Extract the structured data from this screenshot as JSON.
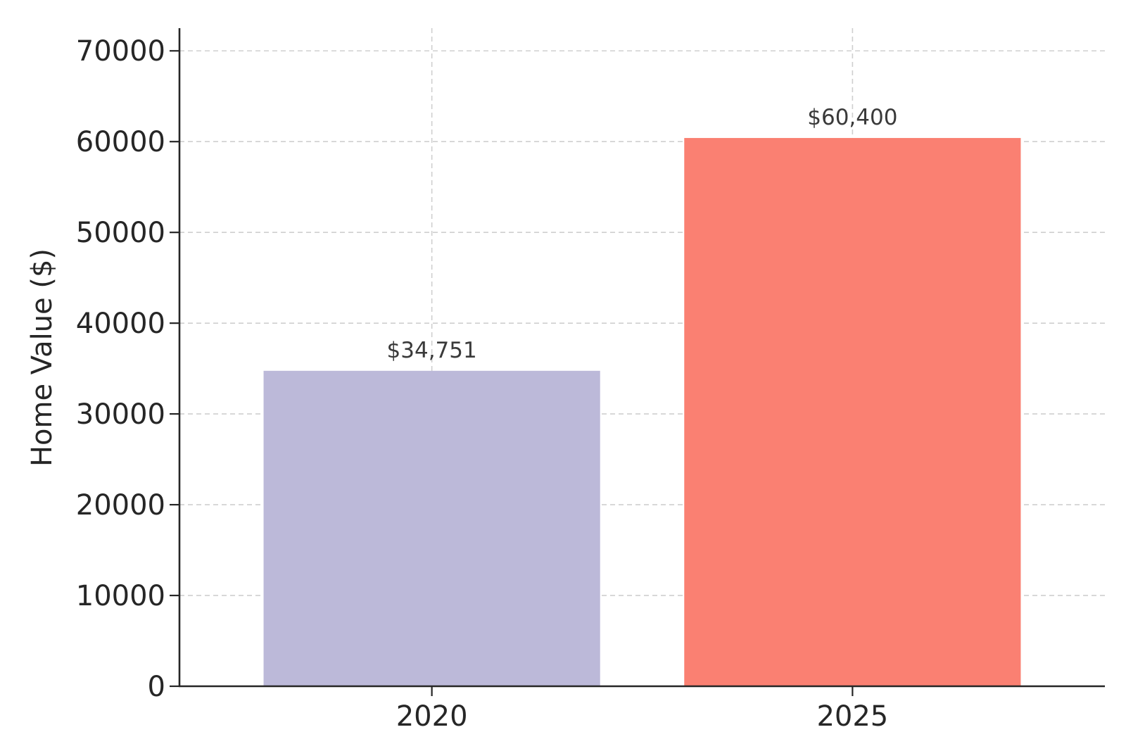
{
  "chart_data": {
    "type": "bar",
    "categories": [
      "2020",
      "2025"
    ],
    "values": [
      34751,
      60400
    ],
    "data_labels": [
      "$34,751",
      "$60,400"
    ],
    "colors": [
      "#bcb9d9",
      "#fa8072"
    ],
    "title": "",
    "xlabel": "",
    "ylabel": "Home Value ($)",
    "ylim": [
      0,
      72500
    ],
    "yticks": [
      0,
      10000,
      20000,
      30000,
      40000,
      50000,
      60000,
      70000
    ],
    "ytick_labels": [
      "0",
      "10000",
      "20000",
      "30000",
      "40000",
      "50000",
      "60000",
      "70000"
    ],
    "grid": true,
    "legend": "none"
  }
}
